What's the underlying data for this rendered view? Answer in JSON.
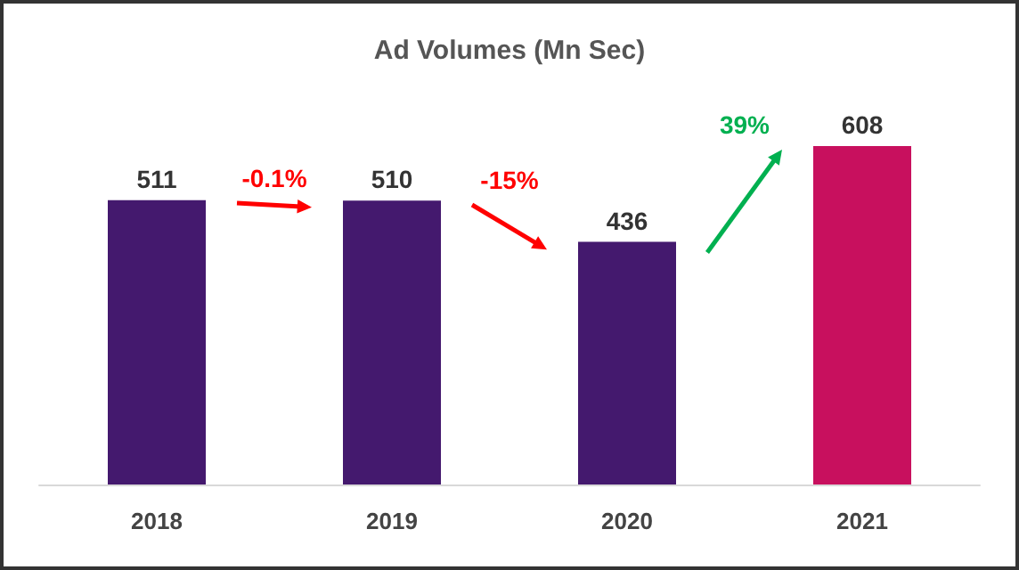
{
  "chart_data": {
    "type": "bar",
    "title": "Ad Volumes (Mn Sec)",
    "categories": [
      "2018",
      "2019",
      "2020",
      "2021"
    ],
    "values": [
      511,
      510,
      436,
      608
    ],
    "colors": [
      "#44196e",
      "#44196e",
      "#44196e",
      "#c8105e"
    ],
    "data_labels": true,
    "annotations": [
      "-0.1%",
      "-15%",
      "39%"
    ]
  }
}
